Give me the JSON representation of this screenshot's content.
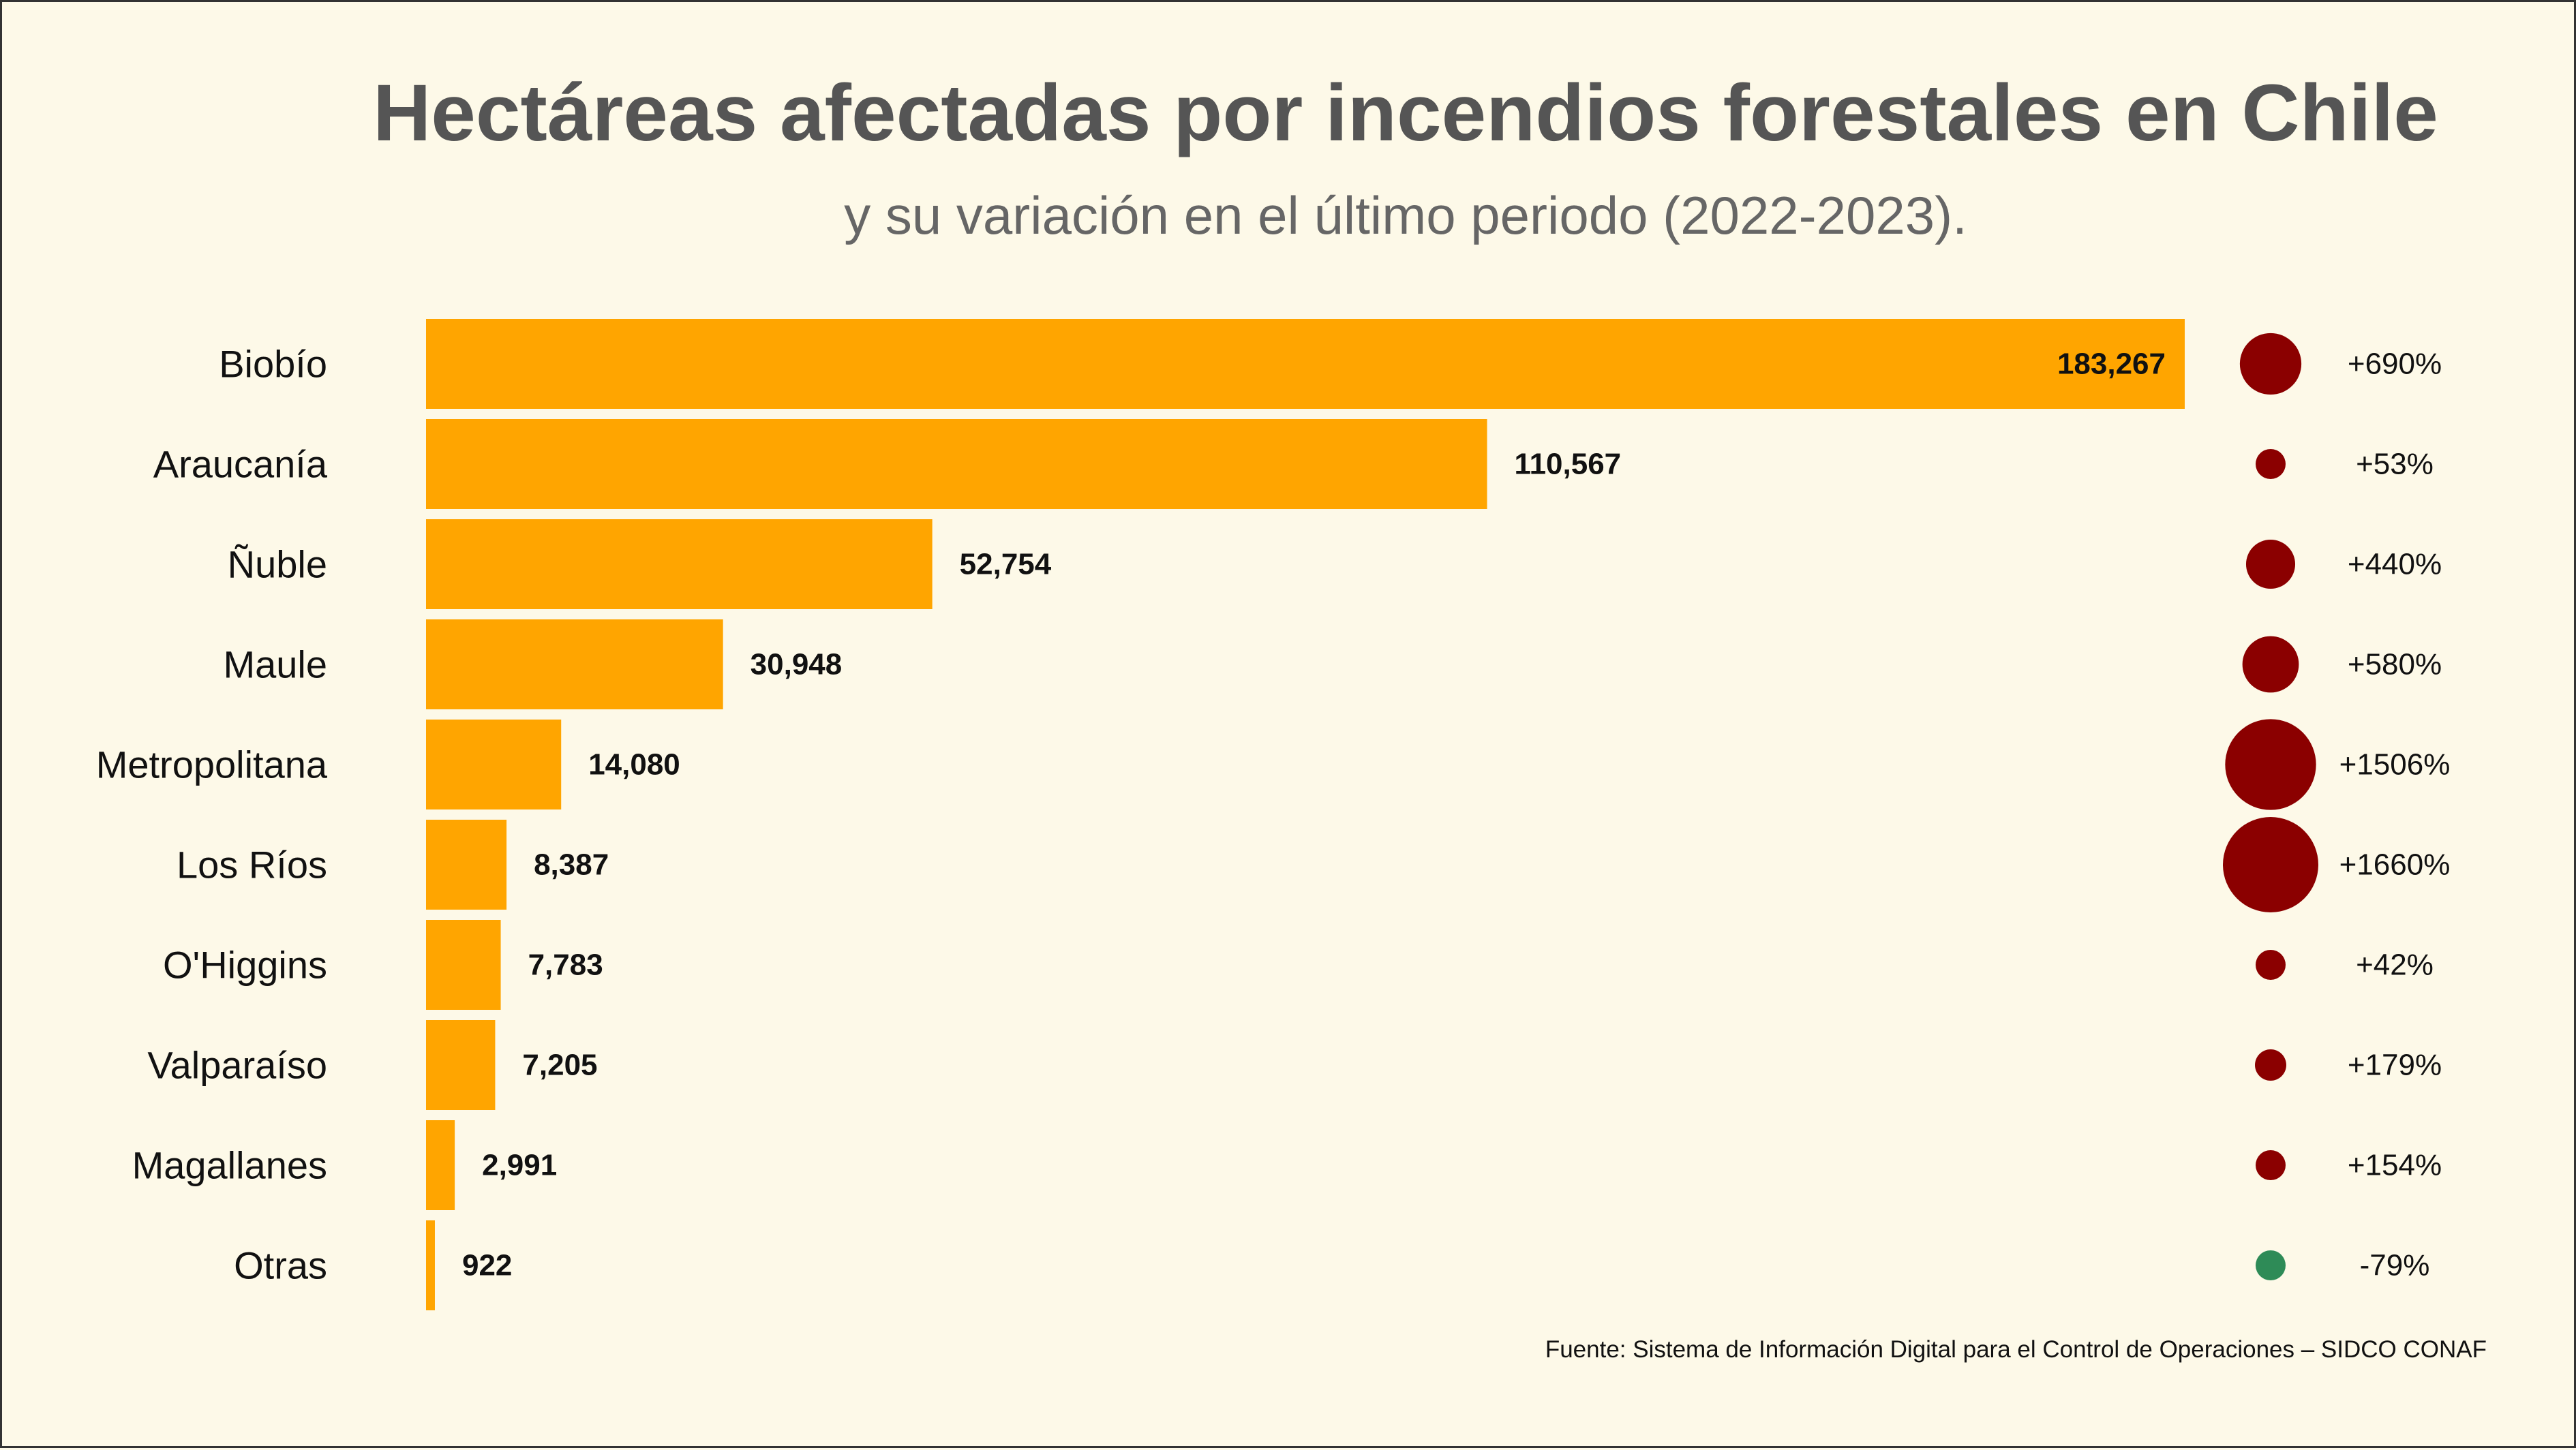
{
  "chart_data": {
    "type": "bar",
    "orientation": "horizontal",
    "title": "Hectáreas afectadas por incendios forestales en Chile",
    "subtitle": "y su variación en el último periodo (2022-2023).",
    "categories": [
      "Biobío",
      "Araucanía",
      "Ñuble",
      "Maule",
      "Metropolitana",
      "Los Ríos",
      "O'Higgins",
      "Valparaíso",
      "Magallanes",
      "Otras"
    ],
    "values": [
      183267,
      110567,
      52754,
      30948,
      14080,
      8387,
      7783,
      7205,
      2991,
      922
    ],
    "value_labels": [
      "183,267",
      "110,567",
      "52,754",
      "30,948",
      "14,080",
      "8,387",
      "7,783",
      "7,205",
      "2,991",
      "922"
    ],
    "variation_pct": [
      690,
      53,
      440,
      580,
      1506,
      1660,
      42,
      179,
      154,
      -79
    ],
    "variation_labels": [
      "+690%",
      "+53%",
      "+440%",
      "+580%",
      "+1506%",
      "+1660%",
      "+42%",
      "+179%",
      "+154%",
      "-79%"
    ],
    "xlim": [
      0,
      183267
    ],
    "grid": false,
    "legend": "none"
  },
  "colors": {
    "background": "#fdf9e8",
    "bar": "#ffa500",
    "increase": "#8b0000",
    "decrease": "#2e8b57",
    "title": "#555555"
  },
  "source": "Fuente: Sistema de Información Digital para el Control de Operaciones – SIDCO CONAF"
}
